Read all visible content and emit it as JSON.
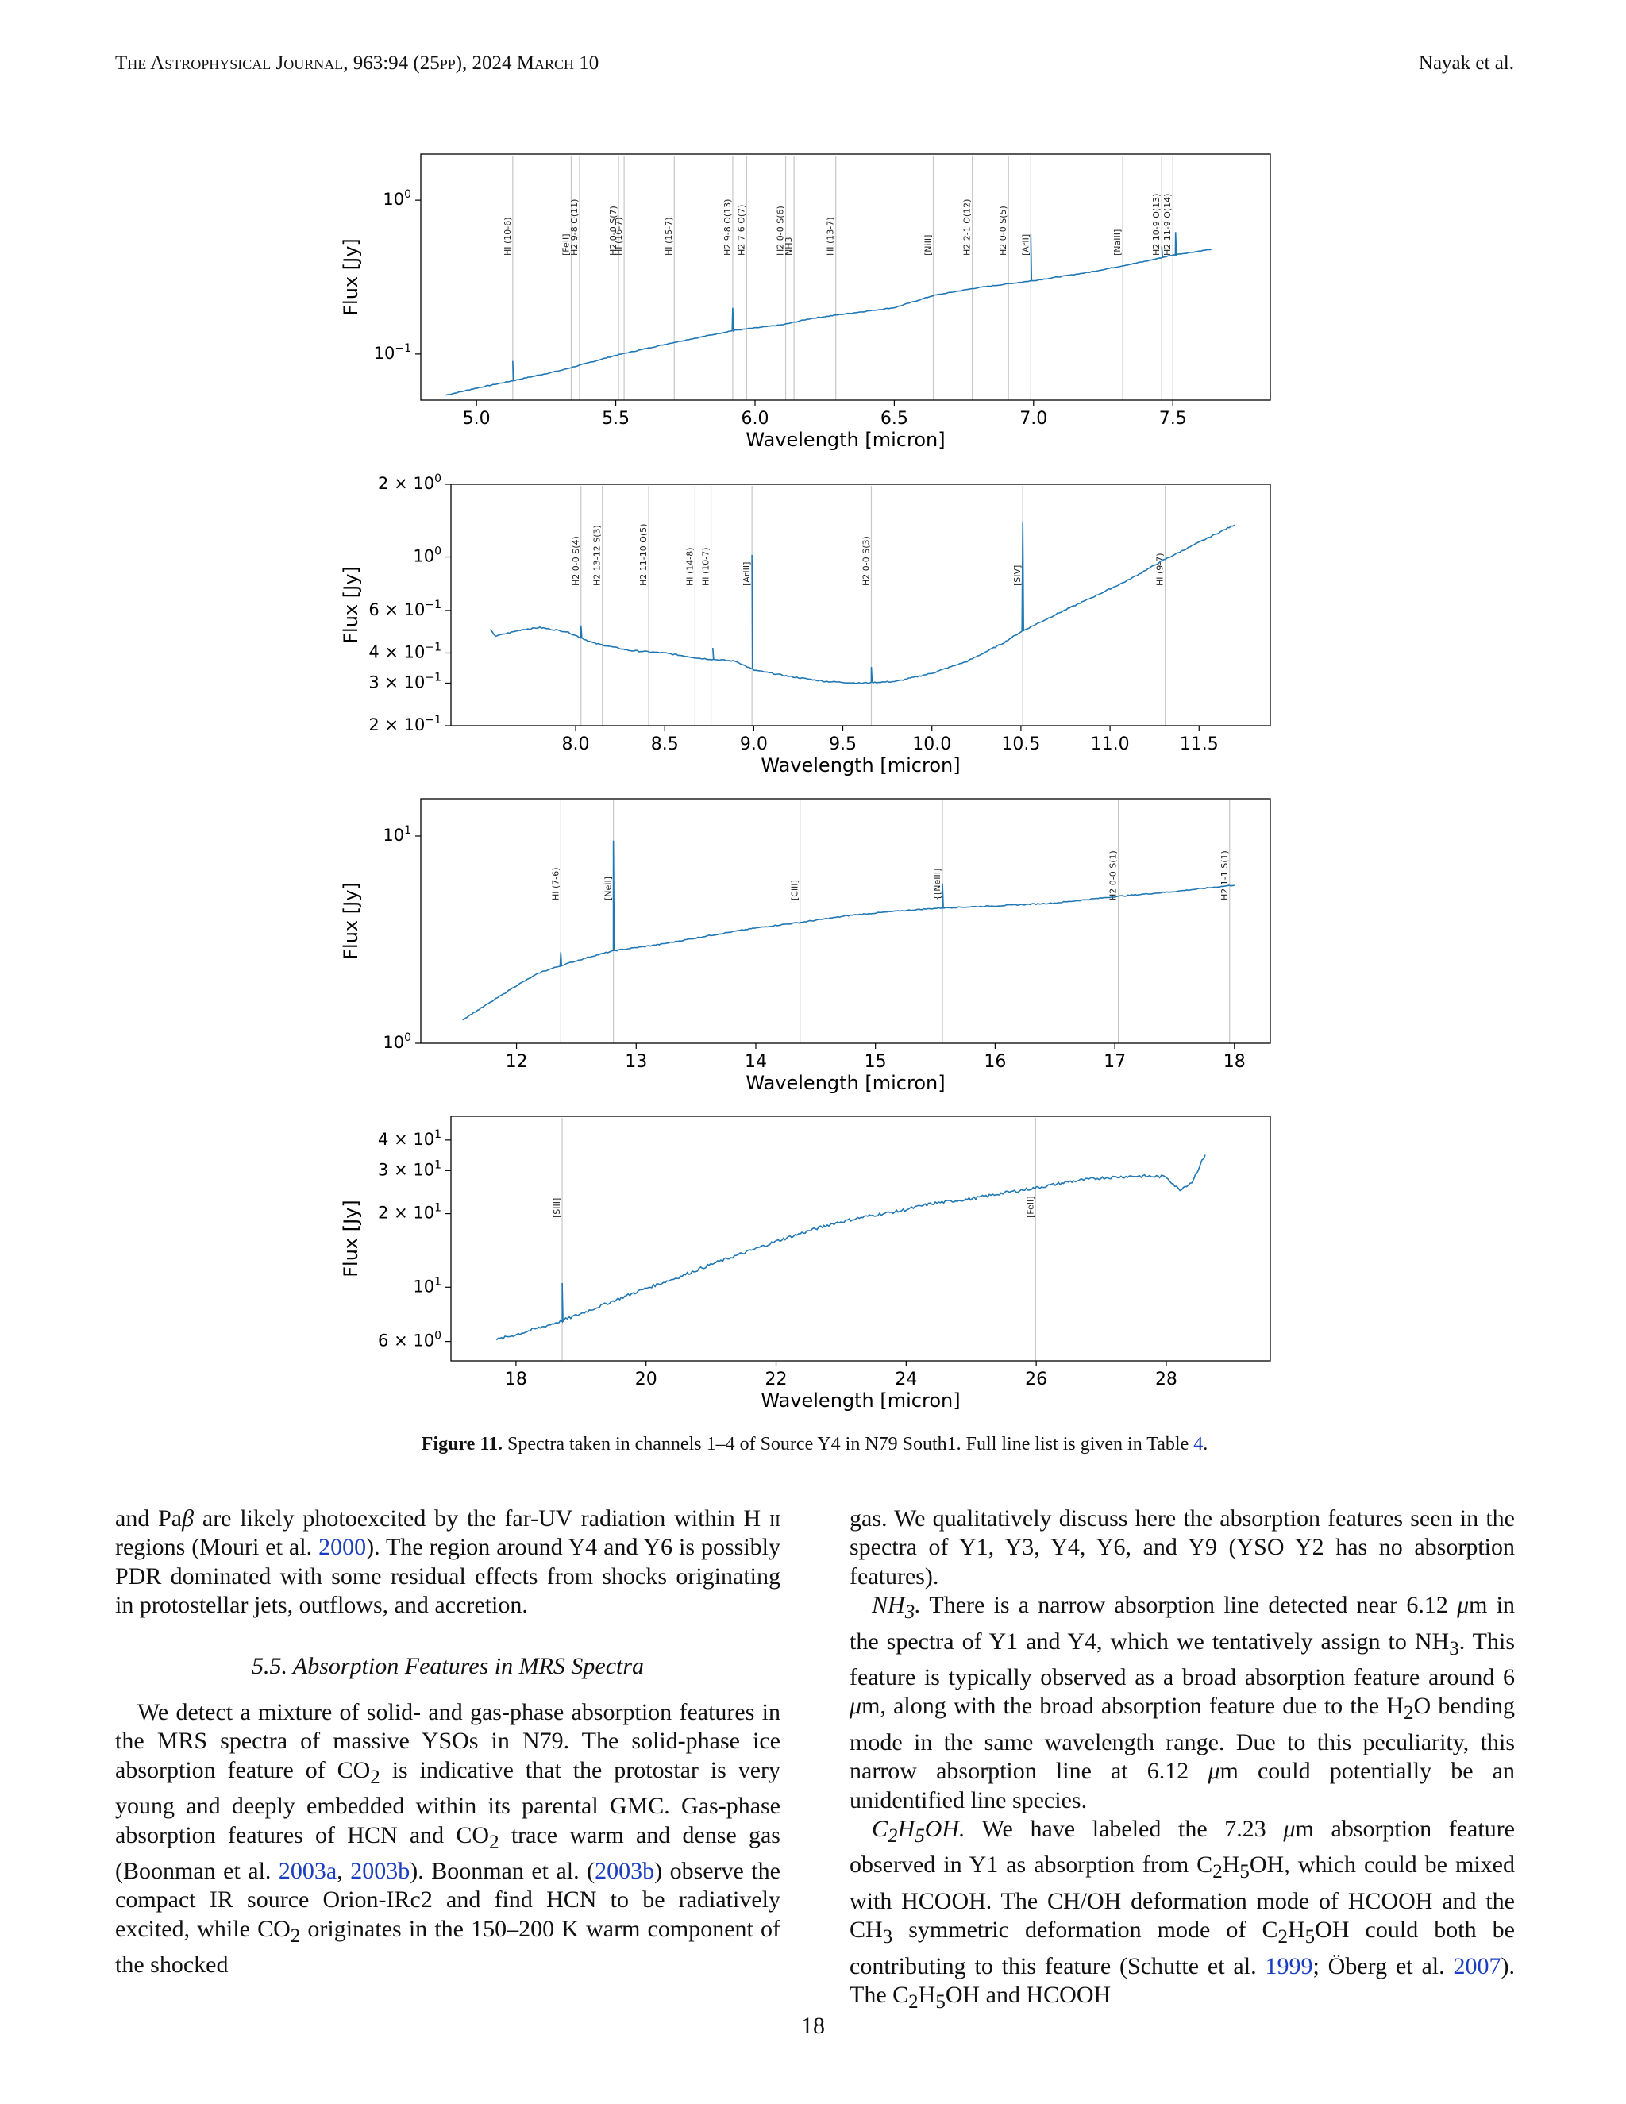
{
  "header": {
    "journal": "The Astrophysical Journal, 963:94 (25pp), 2024 March 10",
    "authors": "Nayak et al."
  },
  "figure": {
    "panels": [
      {
        "xlabel": "Wavelength [micron]",
        "ylabel": "Flux [Jy]",
        "xlim": [
          4.8,
          7.85
        ],
        "ylim_log": [
          -1.3,
          0.3
        ],
        "xticks": [
          {
            "v": 5.0,
            "label": "5.0"
          },
          {
            "v": 5.5,
            "label": "5.5"
          },
          {
            "v": 6.0,
            "label": "6.0"
          },
          {
            "v": 6.5,
            "label": "6.5"
          },
          {
            "v": 7.0,
            "label": "7.0"
          },
          {
            "v": 7.5,
            "label": "7.5"
          }
        ],
        "yticks": [
          {
            "v": 1,
            "base": "10",
            "exp": "0"
          },
          {
            "v": 0.1,
            "base": "10",
            "exp": "−1"
          }
        ],
        "spectrum": [
          [
            4.89,
            0.054
          ],
          [
            5.0,
            0.06
          ],
          [
            5.13,
            0.067
          ],
          [
            5.3,
            0.078
          ],
          [
            5.5,
            0.098
          ],
          [
            5.7,
            0.118
          ],
          [
            5.92,
            0.142
          ],
          [
            6.1,
            0.155
          ],
          [
            6.2,
            0.17
          ],
          [
            6.3,
            0.18
          ],
          [
            6.5,
            0.2
          ],
          [
            6.64,
            0.24
          ],
          [
            6.8,
            0.27
          ],
          [
            7.0,
            0.3
          ],
          [
            7.2,
            0.34
          ],
          [
            7.4,
            0.4
          ],
          [
            7.5,
            0.44
          ],
          [
            7.64,
            0.48
          ]
        ],
        "peaks": [
          [
            5.13,
            0.09
          ],
          [
            5.92,
            0.2
          ],
          [
            6.99,
            0.6
          ],
          [
            7.46,
            0.5
          ],
          [
            7.51,
            0.62
          ]
        ],
        "lines": [
          {
            "x": 5.13,
            "label": "HI (10-6)"
          },
          {
            "x": 5.34,
            "label": "[FeII]"
          },
          {
            "x": 5.37,
            "label": "H2 9-8 O(11)"
          },
          {
            "x": 5.51,
            "label": "H2 0-0 S(7)"
          },
          {
            "x": 5.53,
            "label": "HI (16-7)"
          },
          {
            "x": 5.71,
            "label": "HI (15-7)"
          },
          {
            "x": 5.92,
            "label": "H2 9-8 O(13)"
          },
          {
            "x": 5.97,
            "label": "H2 7-6 O(7)"
          },
          {
            "x": 6.11,
            "label": "H2 0-0 S(6)"
          },
          {
            "x": 6.14,
            "label": "NH3"
          },
          {
            "x": 6.29,
            "label": "HI (13-7)"
          },
          {
            "x": 6.64,
            "label": "[NiII]"
          },
          {
            "x": 6.78,
            "label": "H2 2-1 O(12)"
          },
          {
            "x": 6.91,
            "label": "H2 0-0 S(5)"
          },
          {
            "x": 6.99,
            "label": "[ArII]"
          },
          {
            "x": 7.32,
            "label": "[NaIII]"
          },
          {
            "x": 7.46,
            "label": "H2 10-9 O(13)"
          },
          {
            "x": 7.5,
            "label": "H2 11-9 O(14)"
          }
        ]
      },
      {
        "xlabel": "Wavelength [micron]",
        "ylabel": "Flux [Jy]",
        "xlim": [
          7.3,
          11.9
        ],
        "ylim_log": [
          -0.699,
          0.301
        ],
        "xticks": [
          {
            "v": 8.0,
            "label": "8.0"
          },
          {
            "v": 8.5,
            "label": "8.5"
          },
          {
            "v": 9.0,
            "label": "9.0"
          },
          {
            "v": 9.5,
            "label": "9.5"
          },
          {
            "v": 10.0,
            "label": "10.0"
          },
          {
            "v": 10.5,
            "label": "10.5"
          },
          {
            "v": 11.0,
            "label": "11.0"
          },
          {
            "v": 11.5,
            "label": "11.5"
          }
        ],
        "yticks": [
          {
            "v": 2,
            "base": "2 × 10",
            "exp": "0"
          },
          {
            "v": 1,
            "base": "10",
            "exp": "0"
          },
          {
            "v": 0.6,
            "base": "6 × 10",
            "exp": "−1"
          },
          {
            "v": 0.4,
            "base": "4 × 10",
            "exp": "−1"
          },
          {
            "v": 0.3,
            "base": "3 × 10",
            "exp": "−1"
          },
          {
            "v": 0.2,
            "base": "2 × 10",
            "exp": "−1"
          }
        ],
        "spectrum": [
          [
            7.52,
            0.5
          ],
          [
            7.55,
            0.47
          ],
          [
            7.7,
            0.5
          ],
          [
            7.8,
            0.51
          ],
          [
            7.95,
            0.49
          ],
          [
            8.1,
            0.44
          ],
          [
            8.3,
            0.41
          ],
          [
            8.5,
            0.4
          ],
          [
            8.7,
            0.38
          ],
          [
            8.9,
            0.37
          ],
          [
            9.0,
            0.34
          ],
          [
            9.2,
            0.32
          ],
          [
            9.4,
            0.305
          ],
          [
            9.6,
            0.3
          ],
          [
            9.8,
            0.305
          ],
          [
            10.0,
            0.33
          ],
          [
            10.2,
            0.37
          ],
          [
            10.4,
            0.44
          ],
          [
            10.5,
            0.49
          ],
          [
            10.7,
            0.58
          ],
          [
            10.9,
            0.68
          ],
          [
            11.1,
            0.8
          ],
          [
            11.3,
            0.97
          ],
          [
            11.5,
            1.15
          ],
          [
            11.7,
            1.36
          ]
        ],
        "peaks": [
          [
            8.03,
            0.52
          ],
          [
            8.77,
            0.42
          ],
          [
            8.99,
            1.02
          ],
          [
            9.66,
            0.35
          ],
          [
            10.51,
            1.4
          ],
          [
            11.33,
            1.0
          ]
        ],
        "lines": [
          {
            "x": 8.03,
            "label": "H2 0-0 S(4)"
          },
          {
            "x": 8.15,
            "label": "H2 13-12 S(3)"
          },
          {
            "x": 8.41,
            "label": "H2 11-10 O(5)"
          },
          {
            "x": 8.67,
            "label": "HI (14-8)"
          },
          {
            "x": 8.76,
            "label": "HI (10-7)"
          },
          {
            "x": 8.99,
            "label": "[ArIII]"
          },
          {
            "x": 9.66,
            "label": "H2 0-0 S(3)"
          },
          {
            "x": 10.51,
            "label": "[SIV]"
          },
          {
            "x": 11.31,
            "label": "HI (9-7)"
          }
        ]
      },
      {
        "xlabel": "Wavelength [micron]",
        "ylabel": "Flux [Jy]",
        "xlim": [
          11.2,
          18.3
        ],
        "ylim_log": [
          0.0,
          1.18
        ],
        "xticks": [
          {
            "v": 12,
            "label": "12"
          },
          {
            "v": 13,
            "label": "13"
          },
          {
            "v": 14,
            "label": "14"
          },
          {
            "v": 15,
            "label": "15"
          },
          {
            "v": 16,
            "label": "16"
          },
          {
            "v": 17,
            "label": "17"
          },
          {
            "v": 18,
            "label": "18"
          }
        ],
        "yticks": [
          {
            "v": 10,
            "base": "10",
            "exp": "1"
          },
          {
            "v": 1,
            "base": "10",
            "exp": "0"
          }
        ],
        "spectrum": [
          [
            11.55,
            1.3
          ],
          [
            11.8,
            1.6
          ],
          [
            12.0,
            1.9
          ],
          [
            12.2,
            2.2
          ],
          [
            12.4,
            2.4
          ],
          [
            12.6,
            2.6
          ],
          [
            12.82,
            2.8
          ],
          [
            13.2,
            3.0
          ],
          [
            13.6,
            3.3
          ],
          [
            14.0,
            3.6
          ],
          [
            14.4,
            3.85
          ],
          [
            14.8,
            4.15
          ],
          [
            15.2,
            4.35
          ],
          [
            15.56,
            4.5
          ],
          [
            16.0,
            4.6
          ],
          [
            16.5,
            4.75
          ],
          [
            17.0,
            5.1
          ],
          [
            17.5,
            5.4
          ],
          [
            18.0,
            5.8
          ]
        ],
        "peaks": [
          [
            12.37,
            2.75
          ],
          [
            12.81,
            9.5
          ],
          [
            15.56,
            5.9
          ]
        ],
        "lines": [
          {
            "x": 12.37,
            "label": "HI (7-6)"
          },
          {
            "x": 12.81,
            "label": "[NeII]"
          },
          {
            "x": 14.37,
            "label": "[ClII]"
          },
          {
            "x": 15.56,
            "label": "{[NeIII]"
          },
          {
            "x": 17.03,
            "label": "H2 0-0 S(1)"
          },
          {
            "x": 17.96,
            "label": "H2 1-1 S(1)"
          }
        ]
      },
      {
        "xlabel": "Wavelength [micron]",
        "ylabel": "Flux [Jy]",
        "xlim": [
          17.0,
          29.6
        ],
        "ylim_log": [
          0.699,
          1.699
        ],
        "xticks": [
          {
            "v": 18,
            "label": "18"
          },
          {
            "v": 20,
            "label": "20"
          },
          {
            "v": 22,
            "label": "22"
          },
          {
            "v": 24,
            "label": "24"
          },
          {
            "v": 26,
            "label": "26"
          },
          {
            "v": 28,
            "label": "28"
          }
        ],
        "yticks": [
          {
            "v": 40,
            "base": "4 × 10",
            "exp": "1"
          },
          {
            "v": 30,
            "base": "3 × 10",
            "exp": "1"
          },
          {
            "v": 20,
            "base": "2 × 10",
            "exp": "1"
          },
          {
            "v": 10,
            "base": "10",
            "exp": "1"
          },
          {
            "v": 6,
            "base": "6 × 10",
            "exp": "0"
          }
        ],
        "spectrum": [
          [
            17.7,
            6.1
          ],
          [
            18.0,
            6.4
          ],
          [
            18.5,
            7.0
          ],
          [
            18.71,
            7.3
          ],
          [
            19.0,
            7.8
          ],
          [
            19.5,
            8.8
          ],
          [
            20.0,
            9.9
          ],
          [
            20.5,
            11.0
          ],
          [
            21.0,
            12.4
          ],
          [
            21.5,
            13.8
          ],
          [
            22.0,
            15.4
          ],
          [
            22.5,
            17.0
          ],
          [
            22.9,
            18.3
          ],
          [
            23.4,
            19.5
          ],
          [
            23.9,
            20.5
          ],
          [
            24.4,
            22.0
          ],
          [
            25.0,
            23.0
          ],
          [
            25.5,
            24.3
          ],
          [
            26.0,
            25.5
          ],
          [
            26.5,
            27.0
          ],
          [
            27.0,
            28.0
          ],
          [
            27.5,
            28.5
          ],
          [
            28.0,
            28.3
          ],
          [
            28.2,
            25.0
          ],
          [
            28.4,
            27.0
          ],
          [
            28.6,
            35.0
          ]
        ],
        "peaks": [
          [
            18.71,
            10.4
          ]
        ],
        "lines": [
          {
            "x": 18.71,
            "label": "[SIII]"
          },
          {
            "x": 25.99,
            "label": "[FeII]"
          }
        ]
      }
    ]
  },
  "caption": {
    "label": "Figure 11.",
    "text": " Spectra taken in channels 1–4 of Source Y4 in N79 South1. Full line list is given in Table ",
    "link": "4",
    "end": "."
  },
  "page_number": "18"
}
